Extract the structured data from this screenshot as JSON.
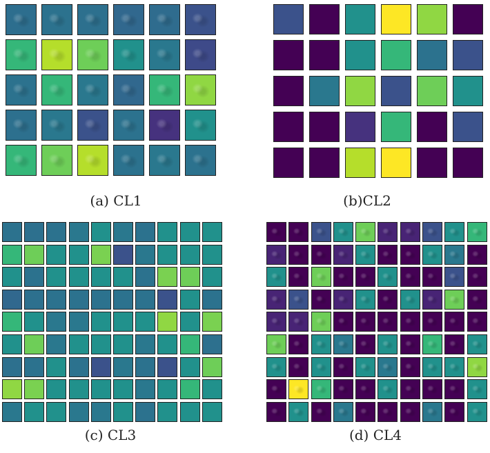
{
  "panels": [
    {
      "id": "p1",
      "caption": "(a) CL1",
      "cols": 6,
      "rows": 5,
      "tiles": [
        [
          "#2d6e8e",
          "#2c728e",
          "#2d708e",
          "#31688e",
          "#2f6c8e",
          "#3b528b"
        ],
        [
          "#35b779",
          "#b5de2b",
          "#6ece58",
          "#21918c",
          "#2a788e",
          "#3e4a89"
        ],
        [
          "#2c728e",
          "#35b779",
          "#2a788e",
          "#31688e",
          "#35b779",
          "#90d743"
        ],
        [
          "#2d708e",
          "#2a788e",
          "#3b528b",
          "#2c728e",
          "#46327e",
          "#21918c"
        ],
        [
          "#35b779",
          "#6ece58",
          "#b5de2b",
          "#2c728e",
          "#2a788e",
          "#2c728e"
        ]
      ]
    },
    {
      "id": "p2",
      "caption": "(b)CL2",
      "cols": 6,
      "rows": 5,
      "tiles": [
        [
          "#3b528b",
          "#440154",
          "#21918c",
          "#fde725",
          "#90d743",
          "#440154"
        ],
        [
          "#440154",
          "#440154",
          "#21918c",
          "#35b779",
          "#2c728e",
          "#3b528b"
        ],
        [
          "#440154",
          "#2a788e",
          "#90d743",
          "#3b528b",
          "#6ece58",
          "#21918c"
        ],
        [
          "#440154",
          "#440154",
          "#46327e",
          "#35b779",
          "#440154",
          "#3b528b"
        ],
        [
          "#440154",
          "#440154",
          "#b5de2b",
          "#fde725",
          "#440154",
          "#440154"
        ]
      ]
    },
    {
      "id": "p3",
      "caption": "(c) CL3",
      "cols": 10,
      "rows": 9,
      "tiles": [
        [
          "#2c728e",
          "#2d708e",
          "#2c728e",
          "#2a788e",
          "#21918c",
          "#2a788e",
          "#2c728e",
          "#21918c",
          "#21918c",
          "#21918c"
        ],
        [
          "#35b779",
          "#6ece58",
          "#21918c",
          "#21918c",
          "#7ad151",
          "#3b528b",
          "#2a788e",
          "#21918c",
          "#21918c",
          "#21918c"
        ],
        [
          "#21918c",
          "#2c728e",
          "#21918c",
          "#21918c",
          "#21918c",
          "#21918c",
          "#2c728e",
          "#7ad151",
          "#6ece58",
          "#21918c"
        ],
        [
          "#31688e",
          "#2d708e",
          "#2c728e",
          "#2c728e",
          "#2c728e",
          "#2c728e",
          "#2c728e",
          "#3b528b",
          "#21918c",
          "#2c728e"
        ],
        [
          "#35b779",
          "#21918c",
          "#2a788e",
          "#2a788e",
          "#21918c",
          "#21918c",
          "#21918c",
          "#90d743",
          "#21918c",
          "#7ad151"
        ],
        [
          "#21918c",
          "#6ece58",
          "#2a788e",
          "#21918c",
          "#21918c",
          "#21918c",
          "#2a788e",
          "#21918c",
          "#35b779",
          "#2d708e"
        ],
        [
          "#2d708e",
          "#2c728e",
          "#21918c",
          "#2c728e",
          "#3b528b",
          "#2a788e",
          "#2c728e",
          "#3b528b",
          "#21918c",
          "#6ece58"
        ],
        [
          "#90d743",
          "#7ad151",
          "#21918c",
          "#21918c",
          "#21918c",
          "#21918c",
          "#2a788e",
          "#21918c",
          "#35b779",
          "#21918c"
        ],
        [
          "#2a788e",
          "#21918c",
          "#21918c",
          "#2a788e",
          "#2a788e",
          "#21918c",
          "#2c728e",
          "#21918c",
          "#21918c",
          "#21918c"
        ]
      ]
    },
    {
      "id": "p4",
      "caption": "(d) CL4",
      "cols": 10,
      "rows": 9,
      "tiles": [
        [
          "#440154",
          "#440154",
          "#3b528b",
          "#21918c",
          "#6ece58",
          "#482475",
          "#482475",
          "#3b528b",
          "#21918c",
          "#35b779"
        ],
        [
          "#482475",
          "#440154",
          "#440154",
          "#482475",
          "#21918c",
          "#440154",
          "#440154",
          "#21918c",
          "#2a788e",
          "#440154"
        ],
        [
          "#21918c",
          "#440154",
          "#6ece58",
          "#440154",
          "#440154",
          "#21918c",
          "#440154",
          "#440154",
          "#3b528b",
          "#440154"
        ],
        [
          "#482475",
          "#3b528b",
          "#440154",
          "#482475",
          "#21918c",
          "#440154",
          "#21918c",
          "#482475",
          "#6ece58",
          "#440154"
        ],
        [
          "#482475",
          "#482475",
          "#6ece58",
          "#440154",
          "#440154",
          "#440154",
          "#440154",
          "#440154",
          "#440154",
          "#440154"
        ],
        [
          "#6ece58",
          "#440154",
          "#21918c",
          "#2a788e",
          "#440154",
          "#21918c",
          "#440154",
          "#35b779",
          "#440154",
          "#21918c"
        ],
        [
          "#21918c",
          "#440154",
          "#21918c",
          "#440154",
          "#21918c",
          "#2a788e",
          "#440154",
          "#21918c",
          "#21918c",
          "#90d743"
        ],
        [
          "#440154",
          "#fde725",
          "#35b779",
          "#440154",
          "#440154",
          "#21918c",
          "#440154",
          "#440154",
          "#440154",
          "#21918c"
        ],
        [
          "#440154",
          "#21918c",
          "#440154",
          "#2a788e",
          "#440154",
          "#440154",
          "#440154",
          "#2a788e",
          "#440154",
          "#21918c"
        ]
      ]
    }
  ]
}
